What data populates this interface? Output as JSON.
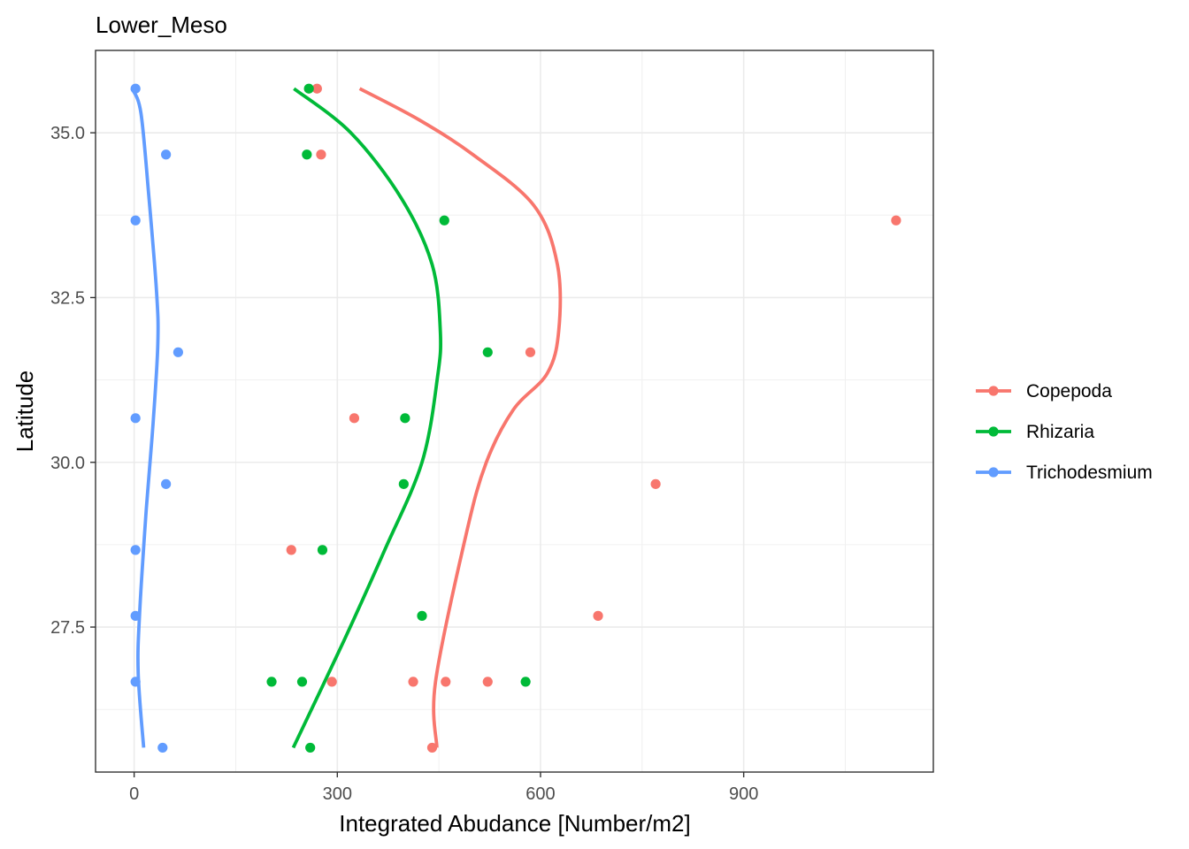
{
  "chart_data": {
    "type": "scatter",
    "title": "Lower_Meso",
    "xlabel": "Integrated Abudance [Number/m2]",
    "ylabel": "Latitude",
    "xlim": [
      -57,
      1180
    ],
    "ylim": [
      25.3,
      36.25
    ],
    "x_ticks": [
      0,
      300,
      600,
      900
    ],
    "x_tick_labels": [
      "0",
      "300",
      "600",
      "900"
    ],
    "y_ticks": [
      27.5,
      30.0,
      32.5,
      35.0
    ],
    "y_tick_labels": [
      "27.5",
      "30.0",
      "32.5",
      "35.0"
    ],
    "grid": true,
    "legend_position": "right",
    "series": [
      {
        "name": "Copepoda",
        "color": "#F8766D",
        "points": [
          {
            "x": 270,
            "y": 35.67
          },
          {
            "x": 276,
            "y": 34.67
          },
          {
            "x": 1125,
            "y": 33.67
          },
          {
            "x": 585,
            "y": 31.67
          },
          {
            "x": 325,
            "y": 30.67
          },
          {
            "x": 770,
            "y": 29.67
          },
          {
            "x": 232,
            "y": 28.67
          },
          {
            "x": 685,
            "y": 27.67
          },
          {
            "x": 292,
            "y": 26.67
          },
          {
            "x": 412,
            "y": 26.67
          },
          {
            "x": 460,
            "y": 26.67
          },
          {
            "x": 522,
            "y": 26.67
          },
          {
            "x": 440,
            "y": 25.67
          }
        ],
        "smooth": [
          {
            "x": 333,
            "y": 35.67
          },
          {
            "x": 420,
            "y": 35.2
          },
          {
            "x": 500,
            "y": 34.67
          },
          {
            "x": 590,
            "y": 33.9
          },
          {
            "x": 625,
            "y": 33.0
          },
          {
            "x": 627,
            "y": 32.0
          },
          {
            "x": 610,
            "y": 31.35
          },
          {
            "x": 560,
            "y": 30.8
          },
          {
            "x": 520,
            "y": 30.0
          },
          {
            "x": 490,
            "y": 28.9
          },
          {
            "x": 445,
            "y": 26.67
          },
          {
            "x": 447,
            "y": 25.67
          }
        ]
      },
      {
        "name": "Rhizaria",
        "color": "#00BA38",
        "points": [
          {
            "x": 258,
            "y": 35.67
          },
          {
            "x": 255,
            "y": 34.67
          },
          {
            "x": 458,
            "y": 33.67
          },
          {
            "x": 522,
            "y": 31.67
          },
          {
            "x": 400,
            "y": 30.67
          },
          {
            "x": 398,
            "y": 29.67
          },
          {
            "x": 278,
            "y": 28.67
          },
          {
            "x": 425,
            "y": 27.67
          },
          {
            "x": 203,
            "y": 26.67
          },
          {
            "x": 248,
            "y": 26.67
          },
          {
            "x": 578,
            "y": 26.67
          },
          {
            "x": 260,
            "y": 25.67
          }
        ],
        "smooth": [
          {
            "x": 236,
            "y": 35.67
          },
          {
            "x": 320,
            "y": 35.0
          },
          {
            "x": 395,
            "y": 34.0
          },
          {
            "x": 440,
            "y": 33.0
          },
          {
            "x": 452,
            "y": 32.0
          },
          {
            "x": 448,
            "y": 31.3
          },
          {
            "x": 425,
            "y": 30.0
          },
          {
            "x": 370,
            "y": 28.67
          },
          {
            "x": 310,
            "y": 27.3
          },
          {
            "x": 235,
            "y": 25.67
          }
        ]
      },
      {
        "name": "Trichodesmium",
        "color": "#619CFF",
        "points": [
          {
            "x": 2,
            "y": 35.67
          },
          {
            "x": 47,
            "y": 34.67
          },
          {
            "x": 2,
            "y": 33.67
          },
          {
            "x": 65,
            "y": 31.67
          },
          {
            "x": 2,
            "y": 30.67
          },
          {
            "x": 47,
            "y": 29.67
          },
          {
            "x": 2,
            "y": 28.67
          },
          {
            "x": 2,
            "y": 27.67
          },
          {
            "x": 2,
            "y": 26.67
          },
          {
            "x": 42,
            "y": 25.67
          }
        ],
        "smooth": [
          {
            "x": -3,
            "y": 35.67
          },
          {
            "x": 10,
            "y": 35.3
          },
          {
            "x": 22,
            "y": 34.0
          },
          {
            "x": 33,
            "y": 32.6
          },
          {
            "x": 35,
            "y": 31.8
          },
          {
            "x": 28,
            "y": 30.6
          },
          {
            "x": 18,
            "y": 29.3
          },
          {
            "x": 8,
            "y": 27.7
          },
          {
            "x": 6,
            "y": 26.8
          },
          {
            "x": 14,
            "y": 25.67
          }
        ]
      }
    ]
  }
}
